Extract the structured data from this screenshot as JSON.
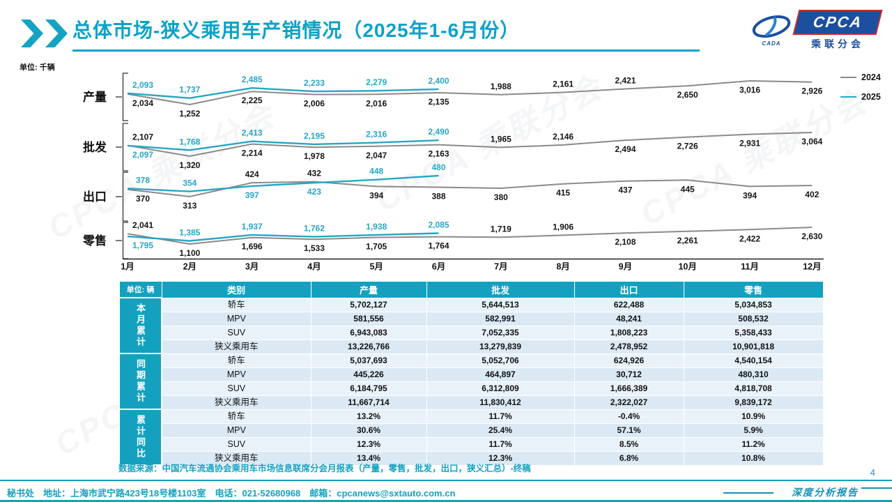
{
  "header": {
    "title": "总体市场-狭义乘用车产销情况（2025年1-6月份）",
    "logo": {
      "name": "CPCA",
      "subtitle": "乘联分会",
      "mark_text": "CADA"
    }
  },
  "watermark": "CPCA 乘联分会",
  "chart": {
    "unit_label": "单位: 千辆",
    "legend": [
      {
        "label": "2024",
        "color": "#8a8a8a"
      },
      {
        "label": "2025",
        "color": "#26a6c6"
      }
    ]
  },
  "chart_data": [
    {
      "type": "line",
      "id": "production",
      "title": "产量",
      "categories": [
        "1月",
        "2月",
        "3月",
        "4月",
        "5月",
        "6月",
        "7月",
        "8月",
        "9月",
        "10月",
        "11月",
        "12月"
      ],
      "series": [
        {
          "name": "2024",
          "color": "#8a8a8a",
          "values": [
            2034,
            1252,
            2225,
            2006,
            2016,
            2135,
            1988,
            2161,
            2421,
            2650,
            3016,
            2926
          ],
          "label_side": [
            "b",
            "b",
            "b",
            "b",
            "b",
            "b",
            "a",
            "a",
            "a",
            "b",
            "b",
            "b"
          ]
        },
        {
          "name": "2025",
          "color": "#26a6c6",
          "values": [
            2093,
            1737,
            2485,
            2233,
            2279,
            2400
          ],
          "label_side": [
            "a",
            "a",
            "a",
            "a",
            "a",
            "a"
          ]
        }
      ]
    },
    {
      "type": "line",
      "id": "wholesale",
      "title": "批发",
      "categories": [
        "1月",
        "2月",
        "3月",
        "4月",
        "5月",
        "6月",
        "7月",
        "8月",
        "9月",
        "10月",
        "11月",
        "12月"
      ],
      "series": [
        {
          "name": "2024",
          "color": "#8a8a8a",
          "values": [
            2107,
            1320,
            2214,
            1978,
            2047,
            2163,
            1965,
            2146,
            2494,
            2726,
            2931,
            3064
          ],
          "label_side": [
            "a",
            "b",
            "b",
            "b",
            "b",
            "b",
            "a",
            "a",
            "b",
            "b",
            "b",
            "b"
          ]
        },
        {
          "name": "2025",
          "color": "#26a6c6",
          "values": [
            2097,
            1768,
            2413,
            2195,
            2316,
            2490
          ],
          "label_side": [
            "b",
            "a",
            "a",
            "a",
            "a",
            "a"
          ]
        }
      ]
    },
    {
      "type": "line",
      "id": "export",
      "title": "出口",
      "categories": [
        "1月",
        "2月",
        "3月",
        "4月",
        "5月",
        "6月",
        "7月",
        "8月",
        "9月",
        "10月",
        "11月",
        "12月"
      ],
      "series": [
        {
          "name": "2024",
          "color": "#8a8a8a",
          "values": [
            370,
            313,
            424,
            432,
            394,
            388,
            380,
            415,
            437,
            445,
            394,
            402
          ],
          "label_side": [
            "b",
            "b",
            "a",
            "a",
            "b",
            "b",
            "b",
            "b",
            "b",
            "b",
            "b",
            "b"
          ]
        },
        {
          "name": "2025",
          "color": "#26a6c6",
          "values": [
            378,
            354,
            397,
            423,
            448,
            480
          ],
          "label_side": [
            "a",
            "a",
            "b",
            "b",
            "a",
            "a"
          ]
        }
      ]
    },
    {
      "type": "line",
      "id": "retail",
      "title": "零售",
      "categories": [
        "1月",
        "2月",
        "3月",
        "4月",
        "5月",
        "6月",
        "7月",
        "8月",
        "9月",
        "10月",
        "11月",
        "12月"
      ],
      "series": [
        {
          "name": "2024",
          "color": "#8a8a8a",
          "values": [
            2041,
            1100,
            1696,
            1533,
            1705,
            1764,
            1719,
            1906,
            2108,
            2261,
            2422,
            2630
          ],
          "label_side": [
            "a",
            "b",
            "b",
            "b",
            "b",
            "b",
            "a",
            "a",
            "b",
            "b",
            "b",
            "b"
          ]
        },
        {
          "name": "2025",
          "color": "#26a6c6",
          "values": [
            1795,
            1385,
            1937,
            1762,
            1938,
            2085
          ],
          "label_side": [
            "b",
            "a",
            "a",
            "a",
            "a",
            "a"
          ]
        }
      ]
    }
  ],
  "table": {
    "unit_header": "单位: 辆",
    "columns": [
      "类别",
      "产量",
      "批发",
      "出口",
      "零售"
    ],
    "groups": [
      {
        "label": "本月累计",
        "rows": [
          [
            "轿车",
            "5,702,127",
            "5,644,513",
            "622,488",
            "5,034,853"
          ],
          [
            "MPV",
            "581,556",
            "582,991",
            "48,241",
            "508,532"
          ],
          [
            "SUV",
            "6,943,083",
            "7,052,335",
            "1,808,223",
            "5,358,433"
          ],
          [
            "狭义乘用车",
            "13,226,766",
            "13,279,839",
            "2,478,952",
            "10,901,818"
          ]
        ]
      },
      {
        "label": "同期累计",
        "rows": [
          [
            "轿车",
            "5,037,693",
            "5,052,706",
            "624,926",
            "4,540,154"
          ],
          [
            "MPV",
            "445,226",
            "464,897",
            "30,712",
            "480,310"
          ],
          [
            "SUV",
            "6,184,795",
            "6,312,809",
            "1,666,389",
            "4,818,708"
          ],
          [
            "狭义乘用车",
            "11,667,714",
            "11,830,412",
            "2,322,027",
            "9,839,172"
          ]
        ]
      },
      {
        "label": "累计同比",
        "rows": [
          [
            "轿车",
            "13.2%",
            "11.7%",
            "-0.4%",
            "10.9%"
          ],
          [
            "MPV",
            "30.6%",
            "25.4%",
            "57.1%",
            "5.9%"
          ],
          [
            "SUV",
            "12.3%",
            "11.7%",
            "8.5%",
            "11.2%"
          ],
          [
            "狭义乘用车",
            "13.4%",
            "12.3%",
            "6.8%",
            "10.8%"
          ]
        ]
      }
    ]
  },
  "source": "数据来源：中国汽车流通协会乘用车市场信息联席分会月报表（产量，零售，批发，出口，狭义汇总）-终稿",
  "footer": {
    "left": "秘书处　地址：上海市武宁路423号18号楼1103室　电话：021-52680968　邮箱：cpcanews@sxtauto.com.cn",
    "report_label": "深度分析报告",
    "page_number": "4"
  }
}
